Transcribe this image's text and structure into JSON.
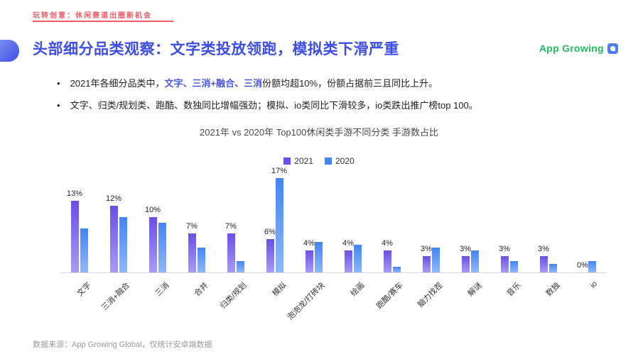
{
  "header": {
    "kicker": "玩转创意：休闲赛道出圈新机会"
  },
  "title": {
    "text": "头部细分品类观察：文字类投放领跑，模拟类下滑严重"
  },
  "logo": {
    "text": "App Growing"
  },
  "ui": {
    "bullet_char": "•"
  },
  "bullets": [
    {
      "prefix": "2021年各细分品类中，",
      "highlight": "文字、三消+融合、三消",
      "suffix": "份额均超10%，份额占据前三且同比上升。"
    },
    {
      "text": "文字、归类/规划类、跑酷、数独同比增幅强劲；模拟、io类同比下滑较多，io类跌出推广榜top 100。"
    }
  ],
  "chart_data": {
    "type": "bar",
    "title": "2021年 vs 2020年 Top100休闲类手游不同分类 手游数占比",
    "categories": [
      "文字",
      "三消+融合",
      "三消",
      "合并",
      "归类/规划",
      "模拟",
      "泡泡龙/打砖块",
      "绘画",
      "跑酷/赛车",
      "脑力找茬",
      "解谜",
      "音乐",
      "数独",
      "io"
    ],
    "unit": "%",
    "ylim": [
      0,
      18
    ],
    "grid": false,
    "legend_position": "top",
    "series": [
      {
        "name": "2021",
        "color_top": "#6b4ee8",
        "color_bottom": "#a79bf4",
        "values": [
          13,
          12,
          10,
          7,
          7,
          6,
          4,
          4,
          4,
          3,
          3,
          3,
          3,
          0
        ],
        "labels": [
          "13%",
          "12%",
          "10%",
          "7%",
          "7%",
          "6%",
          "4%",
          "4%",
          "4%",
          "3%",
          "3%",
          "3%",
          "3%",
          "0%"
        ]
      },
      {
        "name": "2020",
        "color_top": "#4285f4",
        "color_bottom": "#8fb8fa",
        "values": [
          8,
          10,
          9,
          4.5,
          2,
          17,
          5.5,
          5,
          1,
          4.5,
          4,
          2,
          1.5,
          2
        ],
        "labels": [
          "",
          "",
          "",
          "",
          "",
          "17%",
          "",
          "",
          "",
          "",
          "",
          "",
          "",
          ""
        ]
      }
    ]
  },
  "footer": {
    "source": "数据来源：App Growing Global，仅统计安卓端数据"
  },
  "colors": {
    "accent_red": "#f25c68",
    "title_blue": "#3d4ee0",
    "highlight_blue": "#4a56e2",
    "logo_green": "#22bd5f",
    "logo_icon_blue": "#4a7df0"
  }
}
